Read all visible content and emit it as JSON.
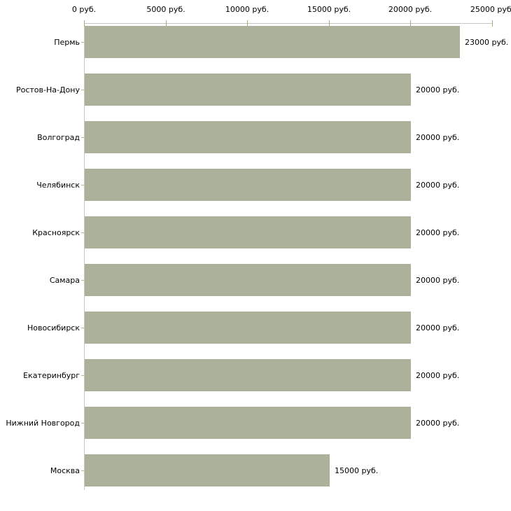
{
  "chart_data": {
    "type": "bar",
    "orientation": "horizontal",
    "title": "",
    "xlabel": "",
    "ylabel": "",
    "unit": "руб.",
    "categories": [
      "Пермь",
      "Ростов-На-Дону",
      "Волгоград",
      "Челябинск",
      "Красноярск",
      "Самара",
      "Новосибирск",
      "Екатеринбург",
      "Нижний Новгород",
      "Москва"
    ],
    "values": [
      23000,
      20000,
      20000,
      20000,
      20000,
      20000,
      20000,
      20000,
      20000,
      15000
    ],
    "value_labels": [
      "23000 руб.",
      "20000 руб.",
      "20000 руб.",
      "20000 руб.",
      "20000 руб.",
      "20000 руб.",
      "20000 руб.",
      "20000 руб.",
      "20000 руб.",
      "15000 руб."
    ],
    "x_ticks": [
      0,
      5000,
      10000,
      15000,
      20000,
      25000
    ],
    "x_tick_labels": [
      "0 руб.",
      "5000 руб.",
      "10000 руб.",
      "15000 руб.",
      "20000 руб.",
      "25000 руб."
    ],
    "xlim": [
      0,
      25000
    ],
    "legend": null,
    "grid": false,
    "axis_position": "top",
    "colors": {
      "bar": "#acb299",
      "axis_line": "#c6c6c6",
      "tick": "#aaaa78",
      "category_tick": "#b9b98f",
      "text": "#000000",
      "background": "#ffffff"
    }
  }
}
